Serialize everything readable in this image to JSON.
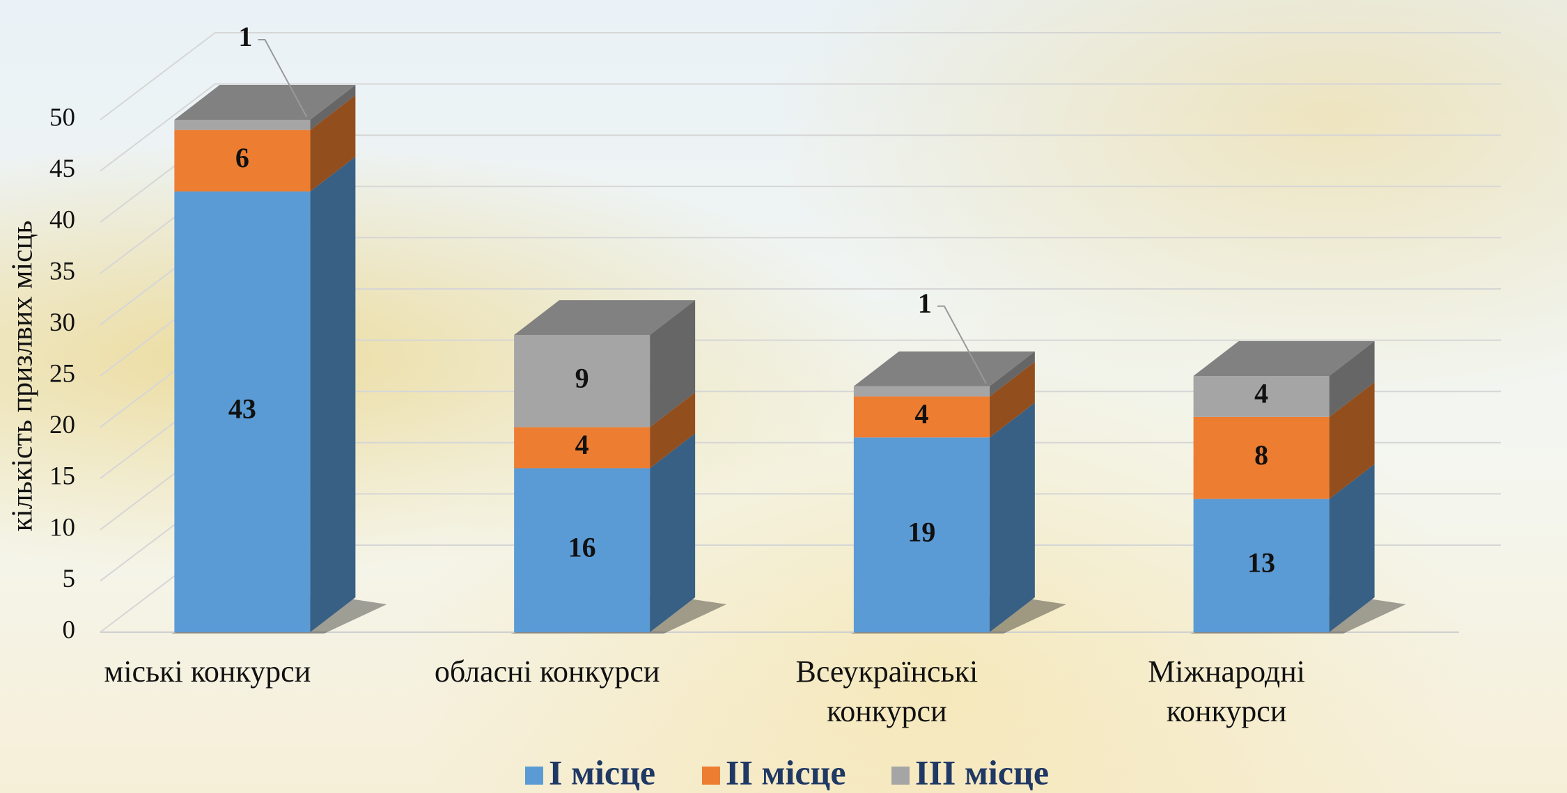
{
  "chart_data": {
    "type": "bar3d_stacked",
    "y_label": "кількість призлвих місць",
    "categories": [
      "міські конкурси",
      "обласні конкурси",
      "Всеукраїнські конкурси",
      "Міжнародні конкурси"
    ],
    "series": [
      {
        "name": "І місце",
        "color": "#5b9bd5",
        "values": [
          43,
          16,
          19,
          13
        ]
      },
      {
        "name": "ІІ місце",
        "color": "#ed7d31",
        "values": [
          6,
          4,
          4,
          8
        ]
      },
      {
        "name": "ІІІ місце",
        "color": "#a5a5a5",
        "values": [
          1,
          9,
          1,
          4
        ]
      }
    ],
    "ylim": [
      0,
      50
    ],
    "yticks": [
      0,
      5,
      10,
      15,
      20,
      25,
      30,
      35,
      40,
      45,
      50
    ],
    "grid": true
  }
}
